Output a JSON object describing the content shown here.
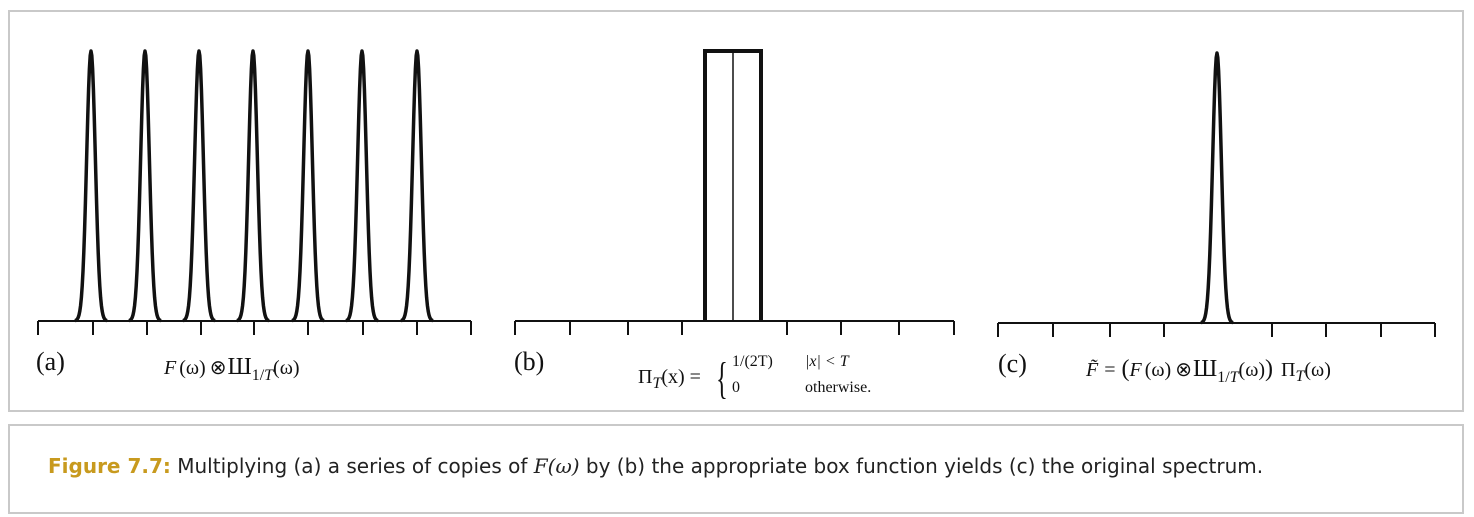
{
  "figure": {
    "panels": [
      {
        "letter": "(a)",
        "formula": {
          "F": "F",
          "omega": "(ω)",
          "otimes": "⊗",
          "sha": "Ш",
          "sub": "1/",
          "subT": "T",
          "omega2": "(ω)"
        }
      },
      {
        "letter": "(b)",
        "formula": {
          "pi": "Π",
          "sub": "T",
          "arg": "(x) =",
          "case1_val": "1/(2T)",
          "case1_cond": "|x| < T",
          "case2_val": "0",
          "case2_cond": "otherwise."
        }
      },
      {
        "letter": "(c)",
        "formula": {
          "Ftilde": "F̃",
          "eq": "=",
          "lparen": "(",
          "F": "F",
          "omega": "(ω)",
          "otimes": "⊗",
          "sha": "Ш",
          "sub": "1/",
          "subT": "T",
          "omega2": "(ω)",
          "rparen": ")",
          "pi": "Π",
          "piSub": "T",
          "omega3": "(ω)"
        }
      }
    ]
  },
  "caption": {
    "label": "Figure 7.7:",
    "text_before": " Multiplying (a) a series of copies of ",
    "math": "F(ω)",
    "text_after": " by (b) the appropriate box function yields (c) the original spectrum."
  }
}
